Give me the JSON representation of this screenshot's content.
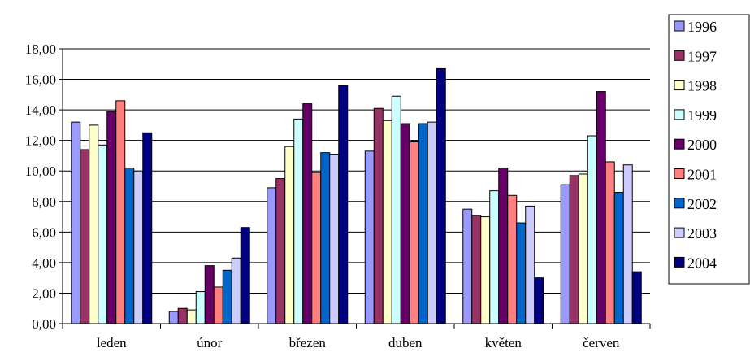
{
  "chart_data": {
    "type": "bar",
    "title": "",
    "xlabel": "",
    "ylabel": "",
    "ylim": [
      0,
      18
    ],
    "ytick_step": 2,
    "ytick_format": "comma-2-decimals",
    "grid": true,
    "legend_position": "right",
    "categories": [
      "leden",
      "únor",
      "březen",
      "duben",
      "květen",
      "červen"
    ],
    "series": [
      {
        "name": "1996",
        "color": "#9999ff",
        "values": [
          13.2,
          0.8,
          8.9,
          11.3,
          7.5,
          9.1
        ]
      },
      {
        "name": "1997",
        "color": "#993366",
        "values": [
          11.4,
          1.0,
          9.5,
          14.1,
          7.1,
          9.7
        ]
      },
      {
        "name": "1998",
        "color": "#ffffcc",
        "values": [
          13.0,
          0.9,
          11.6,
          13.3,
          7.0,
          9.8
        ]
      },
      {
        "name": "1999",
        "color": "#ccffff",
        "values": [
          11.7,
          2.1,
          13.4,
          14.9,
          8.7,
          12.3
        ]
      },
      {
        "name": "2000",
        "color": "#660066",
        "values": [
          13.9,
          3.8,
          14.4,
          13.1,
          10.2,
          15.2
        ]
      },
      {
        "name": "2001",
        "color": "#ff8080",
        "values": [
          14.6,
          2.4,
          9.9,
          11.9,
          8.4,
          10.6
        ]
      },
      {
        "name": "2002",
        "color": "#0066cc",
        "values": [
          10.2,
          3.5,
          11.2,
          13.1,
          6.6,
          8.6
        ]
      },
      {
        "name": "2003",
        "color": "#ccccff",
        "values": [
          10.0,
          4.3,
          11.1,
          13.2,
          7.7,
          10.4
        ]
      },
      {
        "name": "2004",
        "color": "#000080",
        "values": [
          12.5,
          6.3,
          15.6,
          16.7,
          3.0,
          3.4
        ]
      }
    ]
  }
}
